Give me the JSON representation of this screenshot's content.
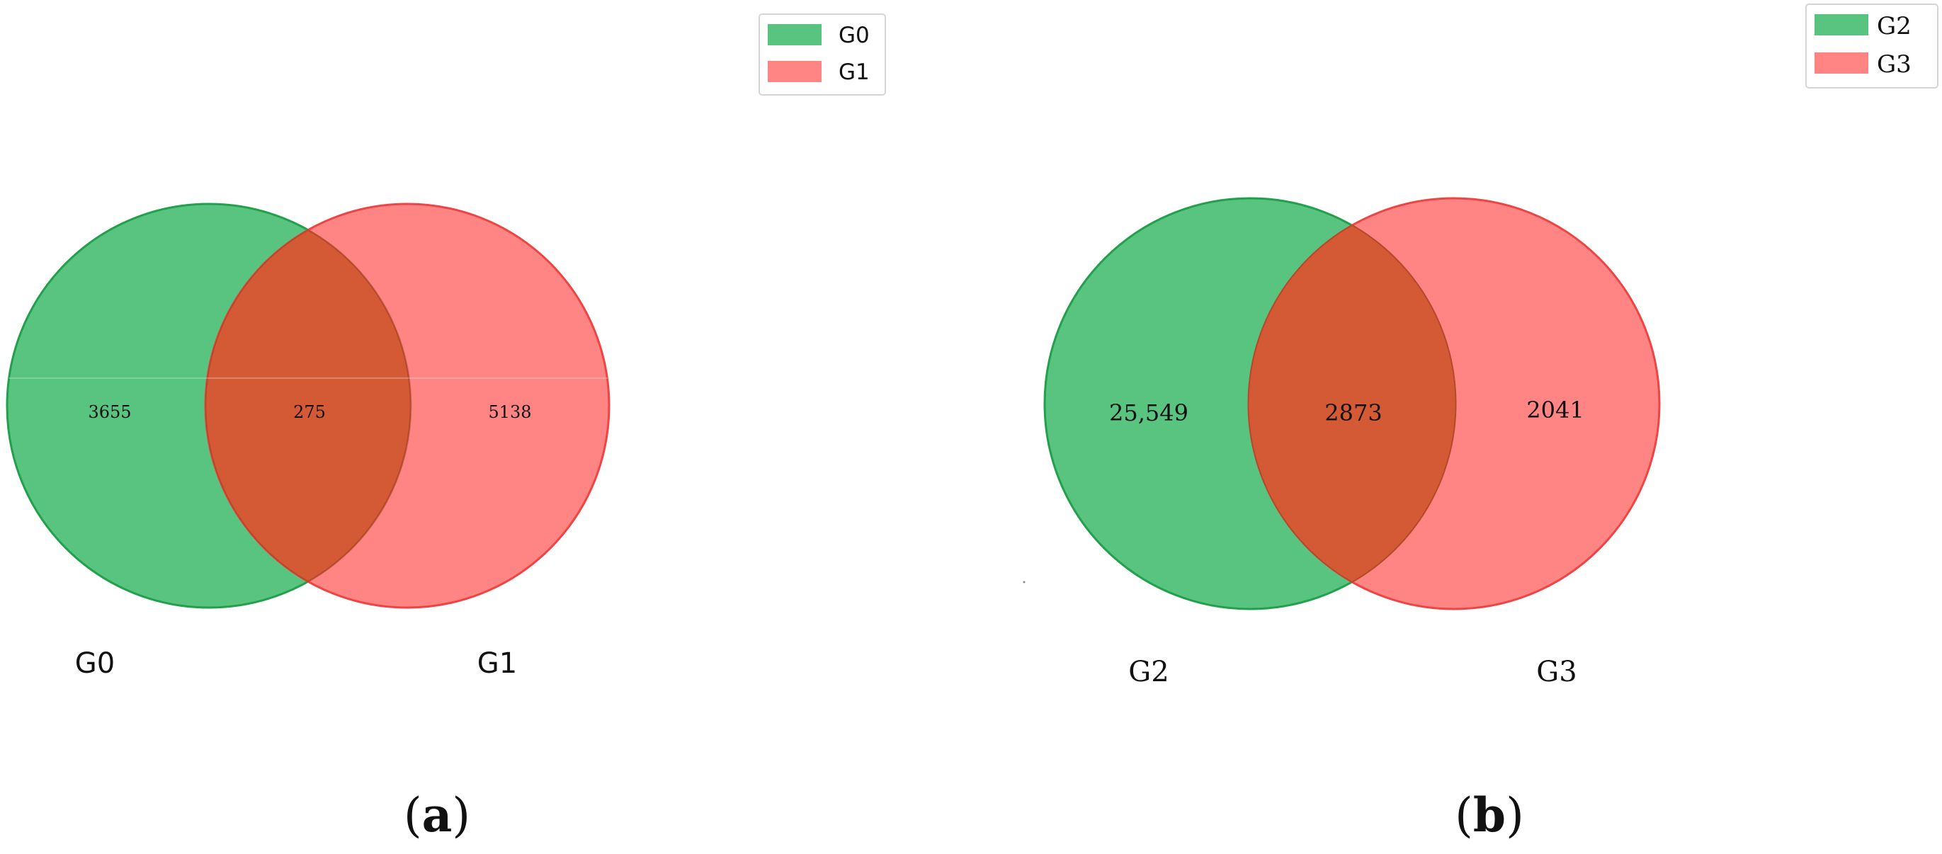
{
  "chart_data": [
    {
      "type": "venn",
      "panel_label": "a",
      "sets": [
        {
          "name": "G0",
          "color": "#3cb96a"
        },
        {
          "name": "G1",
          "color": "#ff6666"
        }
      ],
      "regions": {
        "only_first": "3655",
        "overlap": "275",
        "only_second": "5138"
      },
      "set_labels": [
        "G0",
        "G1"
      ],
      "legend": {
        "entries": [
          "G0",
          "G1"
        ],
        "placement": "top-right"
      }
    },
    {
      "type": "venn",
      "panel_label": "b",
      "sets": [
        {
          "name": "G2",
          "color": "#3cb96a"
        },
        {
          "name": "G3",
          "color": "#ff6666"
        }
      ],
      "regions": {
        "only_first": "25,549",
        "overlap": "2873",
        "only_second": "2041"
      },
      "set_labels": [
        "G2",
        "G3"
      ],
      "legend": {
        "entries": [
          "G2",
          "G3"
        ],
        "placement": "top-right"
      }
    }
  ],
  "colors": {
    "overlap": "#d45a35"
  }
}
